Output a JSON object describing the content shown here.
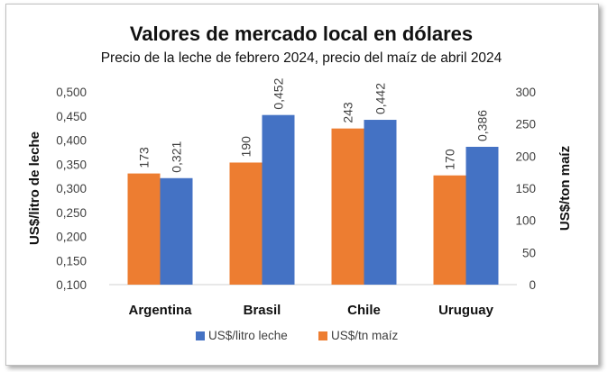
{
  "chart_data": {
    "type": "bar",
    "title": "Valores de mercado local en dólares",
    "subtitle": "Precio de la leche de febrero 2024, precio del maíz de abril 2024",
    "categories": [
      "Argentina",
      "Brasil",
      "Chile",
      "Uruguay"
    ],
    "series": [
      {
        "name": "US$/litro leche",
        "axis": "right-scale-left-axis",
        "values": [
          0.321,
          0.452,
          0.442,
          0.386
        ],
        "labels": [
          "0,321",
          "0,452",
          "0,442",
          "0,386"
        ],
        "color": "#4472c4"
      },
      {
        "name": "US$/tn maíz",
        "values": [
          173,
          190,
          243,
          170
        ],
        "labels": [
          "173",
          "190",
          "243",
          "170"
        ],
        "color": "#ed7d31"
      }
    ],
    "y_left": {
      "label": "US$/litro de leche",
      "lim": [
        0.1,
        0.5
      ],
      "ticks": [
        "0,100",
        "0,150",
        "0,200",
        "0,250",
        "0,300",
        "0,350",
        "0,400",
        "0,450",
        "0,500"
      ]
    },
    "y_right": {
      "label": "US$/ton maíz",
      "lim": [
        0,
        300
      ],
      "ticks": [
        "0",
        "50",
        "100",
        "150",
        "200",
        "250",
        "300"
      ]
    },
    "grid": false,
    "legend": "bottom"
  }
}
